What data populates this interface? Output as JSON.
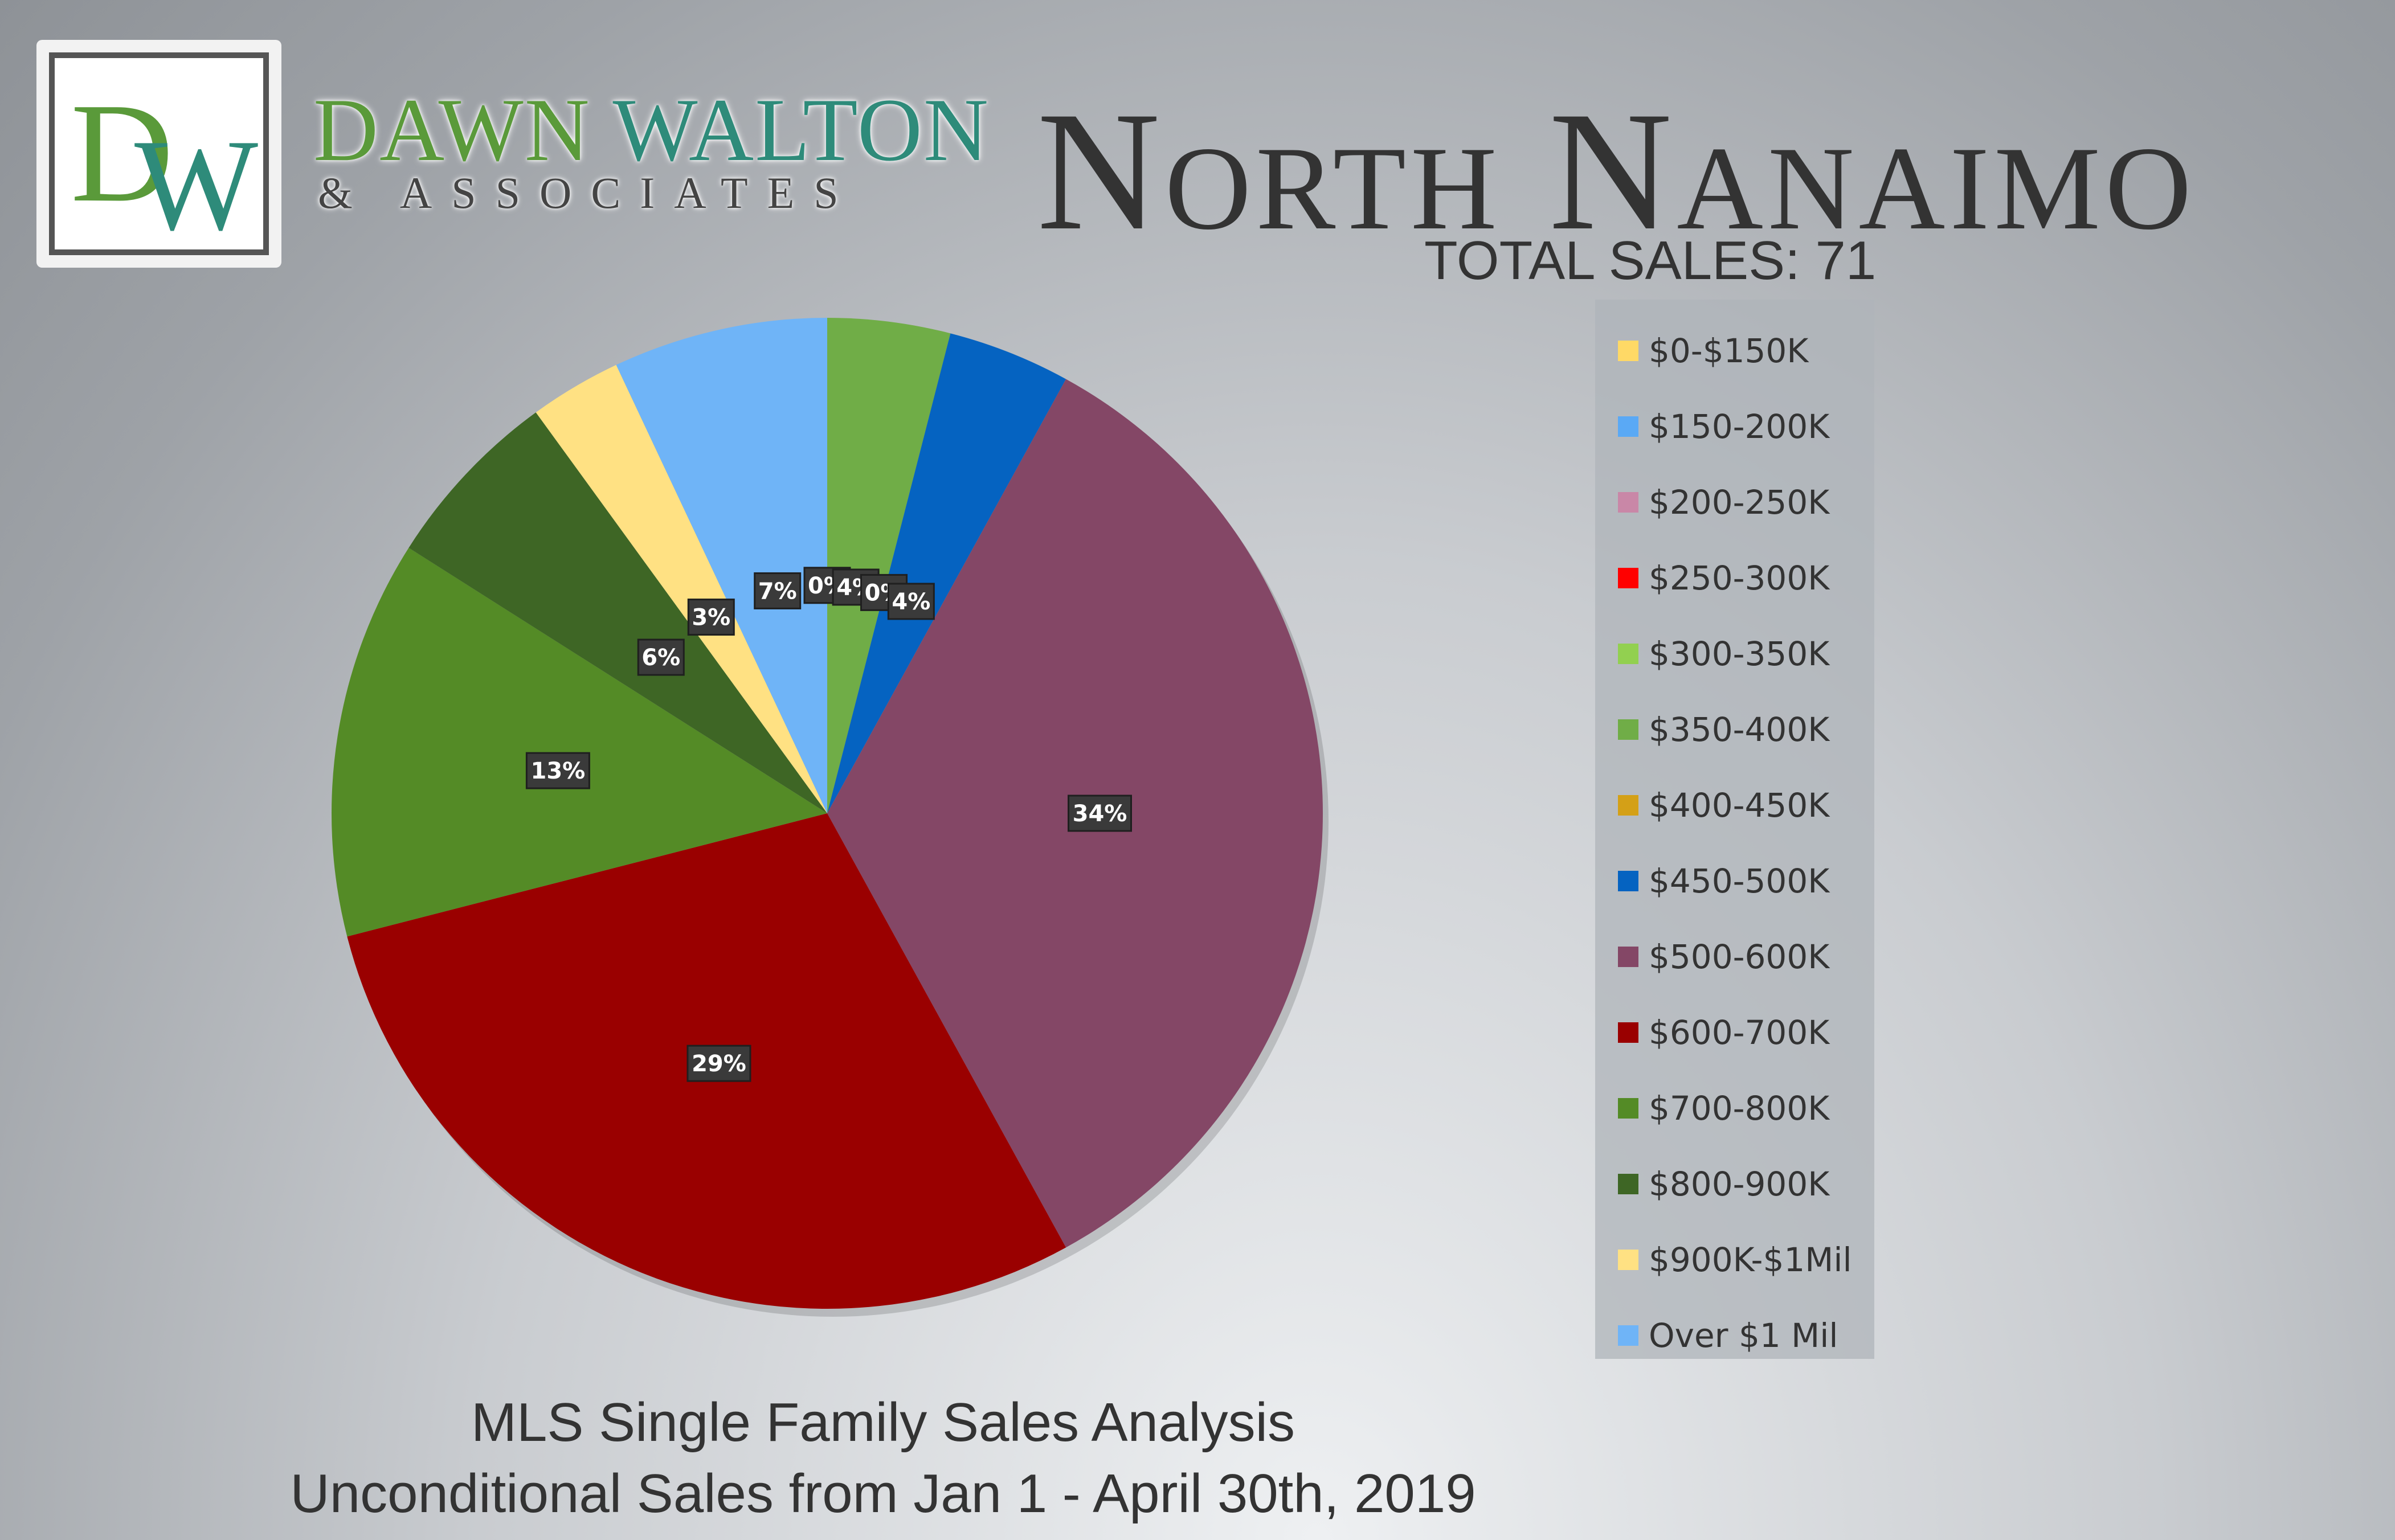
{
  "header": {
    "logo_mark": "DW",
    "brand_line1_part1": "DAWN",
    "brand_line1_part2": "WALTON",
    "brand_line2": "& ASSOCIATES",
    "title": "North Nanaimo",
    "total_sales_label": "TOTAL SALES: 71"
  },
  "footer": {
    "line1": "MLS Single Family Sales Analysis",
    "line2": "Unconditional Sales from Jan 1 - April 30th, 2019"
  },
  "chart_data": {
    "type": "pie",
    "title": "",
    "legend_position": "right",
    "slices": [
      {
        "label": "$0-$150K",
        "value": 0,
        "display": "",
        "color": "#ffd966"
      },
      {
        "label": "$150-200K",
        "value": 0,
        "display": "",
        "color": "#5aa9f5"
      },
      {
        "label": "$200-250K",
        "value": 0,
        "display": "",
        "color": "#c987a7"
      },
      {
        "label": "$250-300K",
        "value": 0,
        "display": "",
        "color": "#ff0000"
      },
      {
        "label": "$300-350K",
        "value": 0,
        "display": "0%",
        "color": "#92d050"
      },
      {
        "label": "$350-400K",
        "value": 4,
        "display": "4%",
        "color": "#70ad47"
      },
      {
        "label": "$400-450K",
        "value": 0,
        "display": "0%",
        "color": "#d4a017"
      },
      {
        "label": "$450-500K",
        "value": 4,
        "display": "4%",
        "color": "#0563c1"
      },
      {
        "label": "$500-600K",
        "value": 34,
        "display": "34%",
        "color": "#844766"
      },
      {
        "label": "$600-700K",
        "value": 29,
        "display": "29%",
        "color": "#9a0000"
      },
      {
        "label": "$700-800K",
        "value": 13,
        "display": "13%",
        "color": "#548b26"
      },
      {
        "label": "$800-900K",
        "value": 6,
        "display": "6%",
        "color": "#3e6625"
      },
      {
        "label": "$900K-$1Mil",
        "value": 3,
        "display": "3%",
        "color": "#ffe183"
      },
      {
        "label": "Over $1 Mil",
        "value": 7,
        "display": "7%",
        "color": "#6fb4f7"
      }
    ]
  }
}
